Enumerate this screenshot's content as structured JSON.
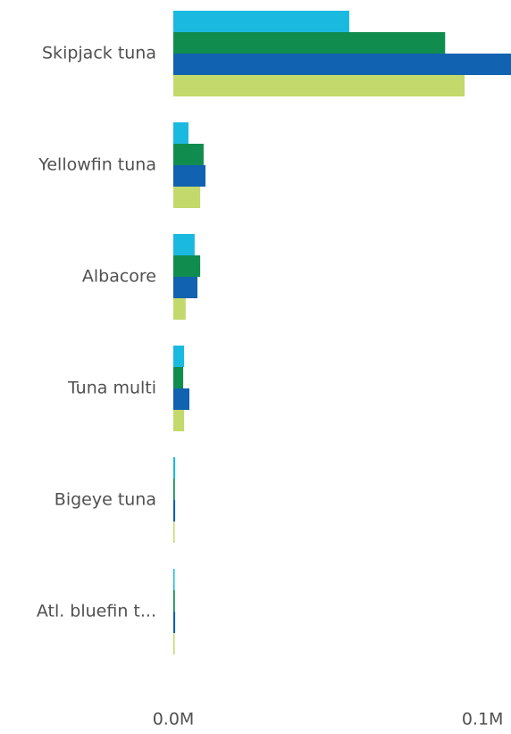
{
  "chart_data": {
    "type": "hbar",
    "categories": [
      "Skipjack tuna",
      "Yellowfin tuna",
      "Albacore",
      "Tuna multi",
      "Bigeye tuna",
      "Atl. bluefin t..."
    ],
    "series": [
      {
        "color": "#1ab9e0",
        "values": [
          56900,
          4900,
          6900,
          3500,
          600,
          100
        ]
      },
      {
        "color": "#118c4f",
        "values": [
          87900,
          9800,
          8700,
          3200,
          500,
          500
        ]
      },
      {
        "color": "#1162b0",
        "values": [
          109200,
          10400,
          7800,
          5200,
          600,
          600
        ]
      },
      {
        "color": "#c3d96c",
        "values": [
          94200,
          8700,
          4000,
          3500,
          400,
          300
        ]
      }
    ],
    "xlim": [
      0,
      109200
    ],
    "xticks": [
      {
        "value": 0,
        "label": "0.0M"
      },
      {
        "value": 100000,
        "label": "0.1M"
      }
    ],
    "grid": false
  }
}
